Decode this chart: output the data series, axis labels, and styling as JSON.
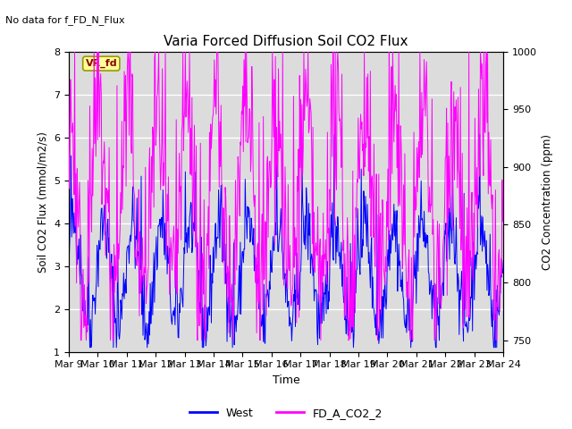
{
  "title": "Varia Forced Diffusion Soil CO2 Flux",
  "no_data_label": "No data for f_FD_N_Flux",
  "site_label": "VR_fd",
  "xlabel": "Time",
  "ylabel_left": "Soil CO2 Flux (mmol/m2/s)",
  "ylabel_right": "CO2 Concentration (ppm)",
  "ylim_left": [
    1.0,
    8.0
  ],
  "ylim_right": [
    740,
    1000
  ],
  "x_tick_labels": [
    "Mar 9",
    "Mar 10",
    "Mar 11",
    "Mar 12",
    "Mar 13",
    "Mar 14",
    "Mar 15",
    "Mar 16",
    "Mar 17",
    "Mar 18",
    "Mar 19",
    "Mar 20",
    "Mar 21",
    "Mar 22",
    "Mar 23",
    "Mar 24"
  ],
  "blue_color": "#0000FF",
  "magenta_color": "#FF00FF",
  "bg_color": "#DCDCDC",
  "legend_labels": [
    "West",
    "FD_A_CO2_2"
  ],
  "fig_bg": "#FFFFFF",
  "grid_color": "#FFFFFF",
  "site_label_bg": "#FFFF99",
  "site_label_border": "#999900",
  "n_days": 15,
  "pts_per_day": 48
}
